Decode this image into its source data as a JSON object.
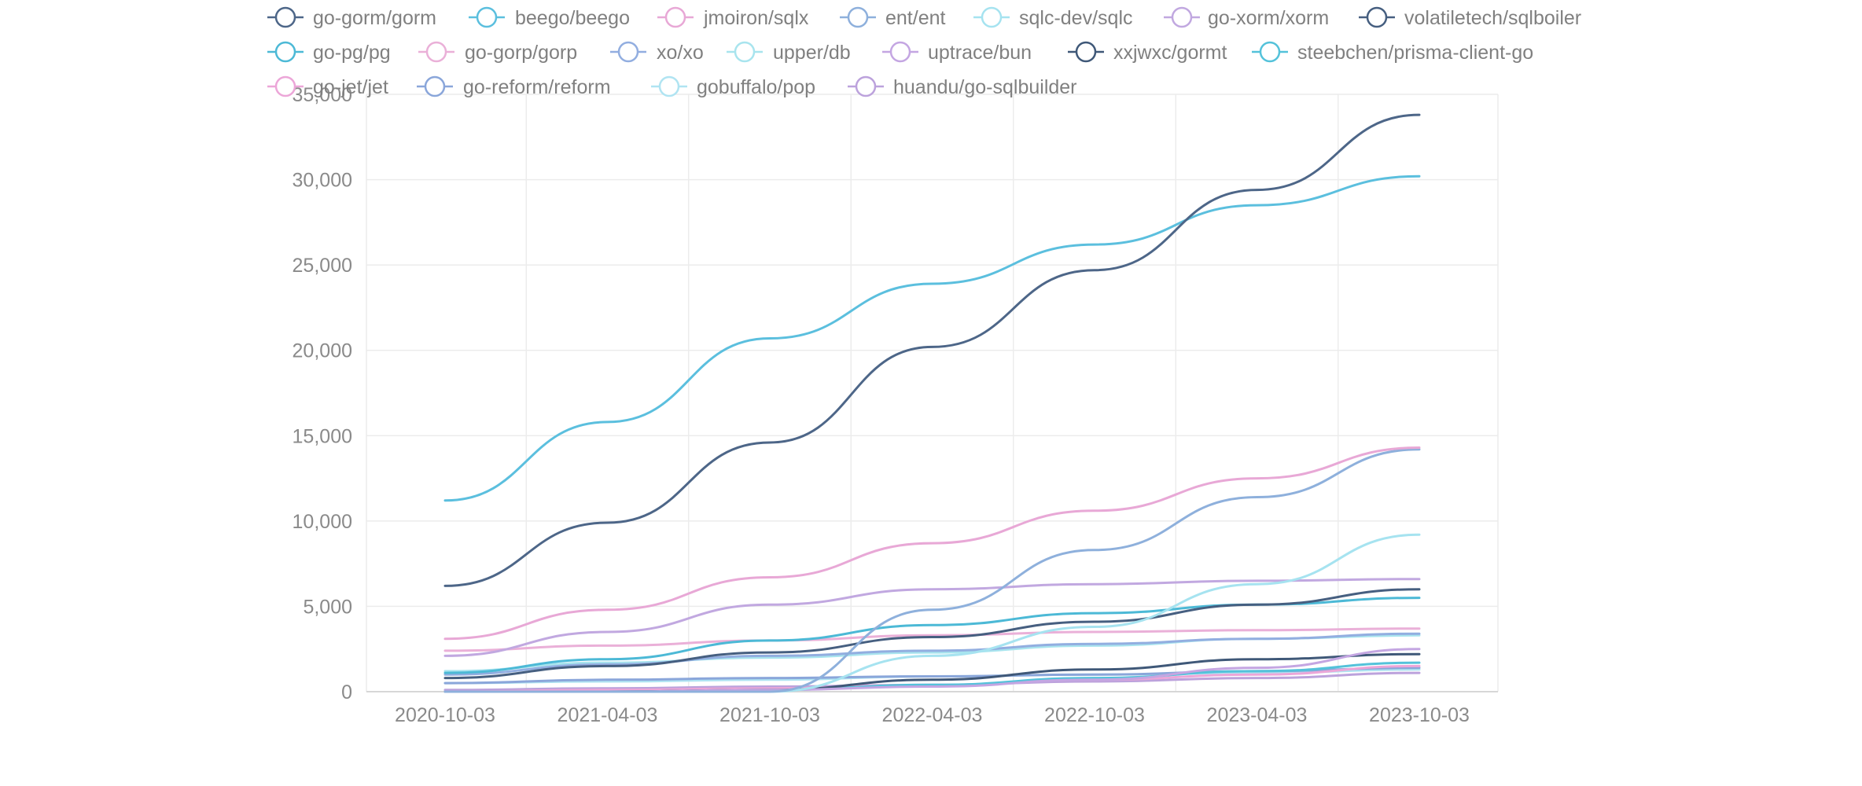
{
  "chart_data": {
    "type": "line",
    "title": "",
    "xlabel": "",
    "ylabel": "",
    "x": [
      "2020-10-03",
      "2021-04-03",
      "2021-10-03",
      "2022-04-03",
      "2022-10-03",
      "2023-04-03",
      "2023-10-03"
    ],
    "x_ticks": [
      "2020-10-03",
      "2021-04-03",
      "2021-10-03",
      "2022-04-03",
      "2022-10-03",
      "2023-04-03",
      "2023-10-03"
    ],
    "ylim": [
      0,
      35000
    ],
    "y_ticks": [
      0,
      5000,
      10000,
      15000,
      20000,
      25000,
      30000,
      35000
    ],
    "y_tick_labels": [
      "0",
      "5,000",
      "10,000",
      "15,000",
      "20,000",
      "25,000",
      "30,000",
      "35,000"
    ],
    "grid": true,
    "legend_position": "top",
    "series": [
      {
        "name": "go-gorm/gorm",
        "color": "#4d6688",
        "values": [
          6200,
          9900,
          14600,
          20200,
          24700,
          29400,
          33800
        ]
      },
      {
        "name": "beego/beego",
        "color": "#5bbfde",
        "values": [
          11200,
          15800,
          20700,
          23900,
          26200,
          28500,
          30200
        ]
      },
      {
        "name": "jmoiron/sqlx",
        "color": "#e8a8d6",
        "values": [
          3100,
          4800,
          6700,
          8700,
          10600,
          12500,
          14300
        ]
      },
      {
        "name": "ent/ent",
        "color": "#8eb0dc",
        "values": [
          0,
          0,
          0,
          4800,
          8300,
          11400,
          14200
        ]
      },
      {
        "name": "sqlc-dev/sqlc",
        "color": "#a6e3f0",
        "values": [
          0,
          0,
          0,
          2100,
          3800,
          6300,
          9200
        ]
      },
      {
        "name": "go-xorm/xorm",
        "color": "#c1a8e0",
        "values": [
          2100,
          3500,
          5100,
          6000,
          6300,
          6500,
          6600
        ]
      },
      {
        "name": "volatiletech/sqlboiler",
        "color": "#465f80",
        "values": [
          800,
          1500,
          2300,
          3200,
          4100,
          5100,
          6000
        ]
      },
      {
        "name": "go-pg/pg",
        "color": "#4cb9d6",
        "values": [
          1100,
          1900,
          3000,
          3900,
          4600,
          5100,
          5500
        ]
      },
      {
        "name": "go-gorp/gorp",
        "color": "#eab0d8",
        "values": [
          2400,
          2700,
          3000,
          3300,
          3500,
          3600,
          3700
        ]
      },
      {
        "name": "xo/xo",
        "color": "#92aee0",
        "values": [
          1000,
          1600,
          2100,
          2400,
          2800,
          3100,
          3400
        ]
      },
      {
        "name": "upper/db",
        "color": "#a8e4ee",
        "values": [
          1200,
          1700,
          2000,
          2300,
          2700,
          3100,
          3300
        ]
      },
      {
        "name": "uptrace/bun",
        "color": "#c4a6e2",
        "values": [
          0,
          0,
          100,
          300,
          700,
          1400,
          2500
        ]
      },
      {
        "name": "xxjwxc/gormt",
        "color": "#3f5878",
        "values": [
          0,
          0,
          100,
          700,
          1300,
          1900,
          2200
        ]
      },
      {
        "name": "steebchen/prisma-client-go",
        "color": "#54c2da",
        "values": [
          0,
          0,
          100,
          400,
          800,
          1200,
          1700
        ]
      },
      {
        "name": "go-jet/jet",
        "color": "#eca6d8",
        "values": [
          0,
          100,
          200,
          400,
          700,
          1000,
          1500
        ]
      },
      {
        "name": "go-reform/reform",
        "color": "#8aa6da",
        "values": [
          500,
          700,
          800,
          900,
          1000,
          1200,
          1400
        ]
      },
      {
        "name": "gobuffalo/pop",
        "color": "#b0e4f2",
        "values": [
          500,
          600,
          700,
          900,
          1000,
          1100,
          1300
        ]
      },
      {
        "name": "huandu/go-sqlbuilder",
        "color": "#bca2dc",
        "values": [
          100,
          200,
          300,
          400,
          600,
          800,
          1100
        ]
      }
    ]
  }
}
